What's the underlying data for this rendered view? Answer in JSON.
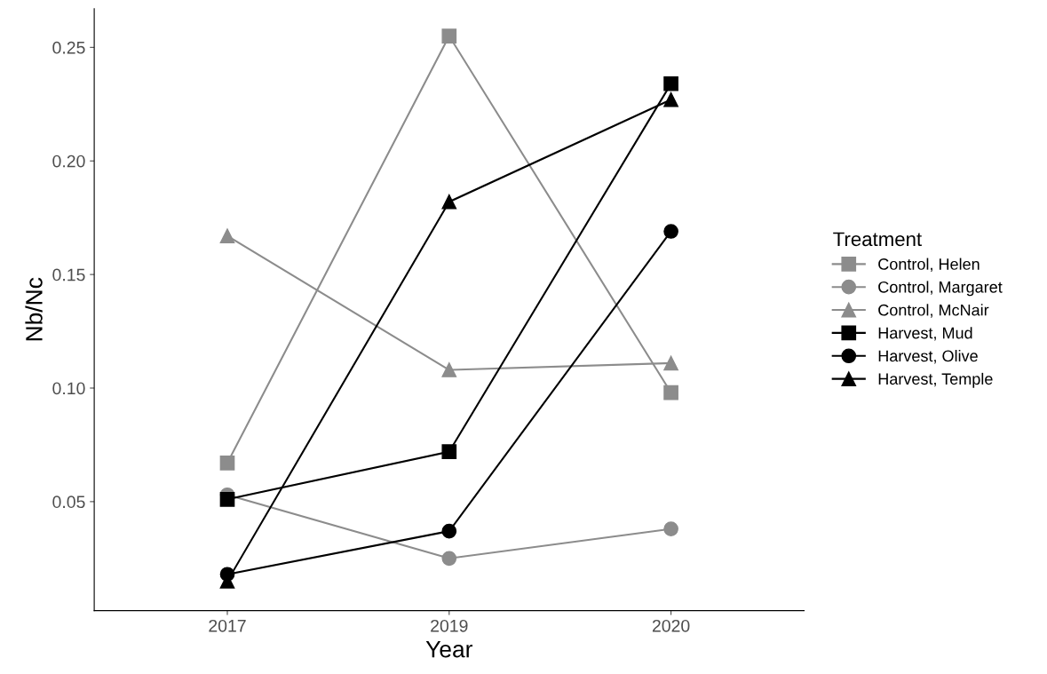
{
  "chart_data": {
    "type": "line",
    "xlabel": "Year",
    "ylabel": "Nb/Nc",
    "legend_title": "Treatment",
    "legend": "right",
    "grid": false,
    "categories": [
      "2017",
      "2019",
      "2020"
    ],
    "ylim": [
      0.002,
      0.267
    ],
    "yticks": [
      {
        "value": 0.05,
        "label": "0.05"
      },
      {
        "value": 0.1,
        "label": "0.10"
      },
      {
        "value": 0.15,
        "label": "0.15"
      },
      {
        "value": 0.2,
        "label": "0.20"
      },
      {
        "value": 0.25,
        "label": "0.25"
      }
    ],
    "series": [
      {
        "name": "Control, Helen",
        "color": "#8c8c8c",
        "marker": "square",
        "values": [
          0.067,
          0.255,
          0.098
        ]
      },
      {
        "name": "Control, Margaret",
        "color": "#8c8c8c",
        "marker": "circle",
        "values": [
          0.053,
          0.025,
          0.038
        ]
      },
      {
        "name": "Control, McNair",
        "color": "#8c8c8c",
        "marker": "triangle",
        "values": [
          0.167,
          0.108,
          0.111
        ]
      },
      {
        "name": "Harvest, Mud",
        "color": "#000000",
        "marker": "square",
        "values": [
          0.051,
          0.072,
          0.234
        ]
      },
      {
        "name": "Harvest, Olive",
        "color": "#000000",
        "marker": "circle",
        "values": [
          0.018,
          0.037,
          0.169
        ]
      },
      {
        "name": "Harvest, Temple",
        "color": "#000000",
        "marker": "triangle",
        "values": [
          0.015,
          0.182,
          0.227
        ]
      }
    ]
  }
}
